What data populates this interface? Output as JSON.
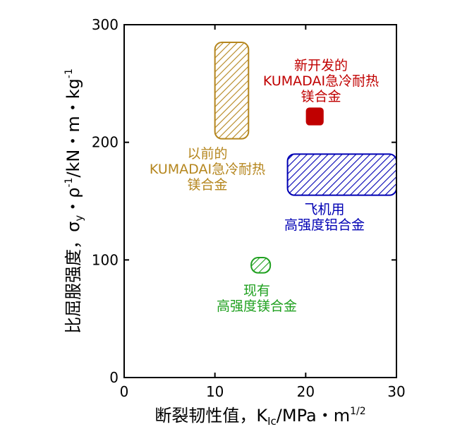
{
  "chart_data": {
    "type": "scatter",
    "xlabel": "断裂韧性值，K",
    "xlabel_sub": "Ic",
    "xlabel_unit": "/MPa・m",
    "xlabel_sup": "1/2",
    "ylabel": "比屈服强度，σ",
    "ylabel_sub": "y",
    "ylabel_mid": "・ρ",
    "ylabel_sup1": "-1",
    "ylabel_unit": "/kN・m・kg",
    "ylabel_sup2": "-1",
    "xlim": [
      0,
      30
    ],
    "ylim": [
      0,
      300
    ],
    "x_ticks": [
      0,
      10,
      20,
      30
    ],
    "y_ticks": [
      0,
      100,
      200,
      300
    ],
    "x_tick_labels": [
      "0",
      "10",
      "20",
      "30"
    ],
    "y_tick_labels": [
      "0",
      "100",
      "200",
      "300"
    ],
    "regions": [
      {
        "id": "previous",
        "label_lines": [
          "以前的",
          "KUMADAI急冷耐热",
          "镁合金"
        ],
        "x_range": [
          10,
          13.7
        ],
        "y_range": [
          203,
          285
        ],
        "color": "#b5861e",
        "fill": "hatch"
      },
      {
        "id": "new",
        "label_lines": [
          "新开发的",
          "KUMADAI急冷耐热",
          "镁合金"
        ],
        "x_range": [
          20.1,
          21.9
        ],
        "y_range": [
          215,
          229
        ],
        "color": "#c00000",
        "fill": "solid"
      },
      {
        "id": "aircraft",
        "label_lines": [
          "飞机用",
          "高强度铝合金"
        ],
        "x_range": [
          18,
          30
        ],
        "y_range": [
          155,
          190
        ],
        "color": "#0000b4",
        "fill": "hatch"
      },
      {
        "id": "existing",
        "label_lines": [
          "现有",
          "高强度镁合金"
        ],
        "x_range": [
          14,
          16.1
        ],
        "y_range": [
          89,
          102
        ],
        "color": "#1fa01f",
        "fill": "hatch"
      }
    ]
  }
}
